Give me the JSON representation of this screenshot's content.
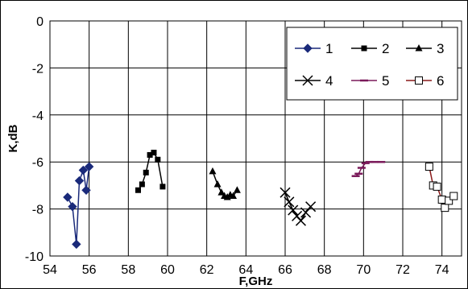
{
  "chart_data": {
    "type": "line",
    "xlabel": "F,GHz",
    "ylabel": "K,dB",
    "xlim": [
      54,
      75
    ],
    "ylim": [
      -10,
      0
    ],
    "xticks": [
      54,
      56,
      58,
      60,
      62,
      64,
      66,
      68,
      70,
      72,
      74
    ],
    "yticks": [
      0,
      -2,
      -4,
      -6,
      -8,
      -10
    ],
    "grid": true,
    "legend": {
      "position": "top-right",
      "columns": 3
    },
    "series": [
      {
        "name": "1",
        "color": "#1a2a7a",
        "marker": "diamond",
        "points": [
          [
            54.9,
            -7.5
          ],
          [
            55.15,
            -7.9
          ],
          [
            55.35,
            -9.5
          ],
          [
            55.5,
            -6.8
          ],
          [
            55.7,
            -6.35
          ],
          [
            55.85,
            -7.2
          ],
          [
            56.0,
            -6.2
          ]
        ]
      },
      {
        "name": "2",
        "color": "#000000",
        "marker": "square",
        "points": [
          [
            58.5,
            -7.2
          ],
          [
            58.7,
            -6.95
          ],
          [
            58.9,
            -6.45
          ],
          [
            59.1,
            -5.7
          ],
          [
            59.3,
            -5.6
          ],
          [
            59.5,
            -5.9
          ],
          [
            59.75,
            -7.05
          ]
        ]
      },
      {
        "name": "3",
        "color": "#000000",
        "marker": "triangle",
        "points": [
          [
            62.3,
            -6.4
          ],
          [
            62.55,
            -6.95
          ],
          [
            62.75,
            -7.3
          ],
          [
            62.9,
            -7.45
          ],
          [
            63.05,
            -7.5
          ],
          [
            63.2,
            -7.4
          ],
          [
            63.35,
            -7.45
          ],
          [
            63.55,
            -7.2
          ]
        ]
      },
      {
        "name": "4",
        "color": "#000000",
        "marker": "x",
        "points": [
          [
            66.0,
            -7.3
          ],
          [
            66.2,
            -7.7
          ],
          [
            66.4,
            -8.05
          ],
          [
            66.6,
            -8.3
          ],
          [
            66.8,
            -8.5
          ],
          [
            67.05,
            -8.15
          ],
          [
            67.3,
            -7.9
          ]
        ]
      },
      {
        "name": "5",
        "color": "#7a1a5a",
        "marker": "dash",
        "points": [
          [
            69.6,
            -6.6
          ],
          [
            69.75,
            -6.5
          ],
          [
            69.9,
            -6.25
          ],
          [
            70.1,
            -6.05
          ],
          [
            70.3,
            -6.0
          ],
          [
            70.55,
            -6.0
          ],
          [
            70.9,
            -6.0
          ]
        ]
      },
      {
        "name": "6",
        "color": "#8a1a1a",
        "marker": "open-square",
        "points": [
          [
            73.35,
            -6.2
          ],
          [
            73.55,
            -7.0
          ],
          [
            73.75,
            -7.05
          ],
          [
            74.0,
            -7.6
          ],
          [
            74.15,
            -7.95
          ],
          [
            74.35,
            -7.65
          ],
          [
            74.6,
            -7.45
          ]
        ]
      }
    ]
  }
}
